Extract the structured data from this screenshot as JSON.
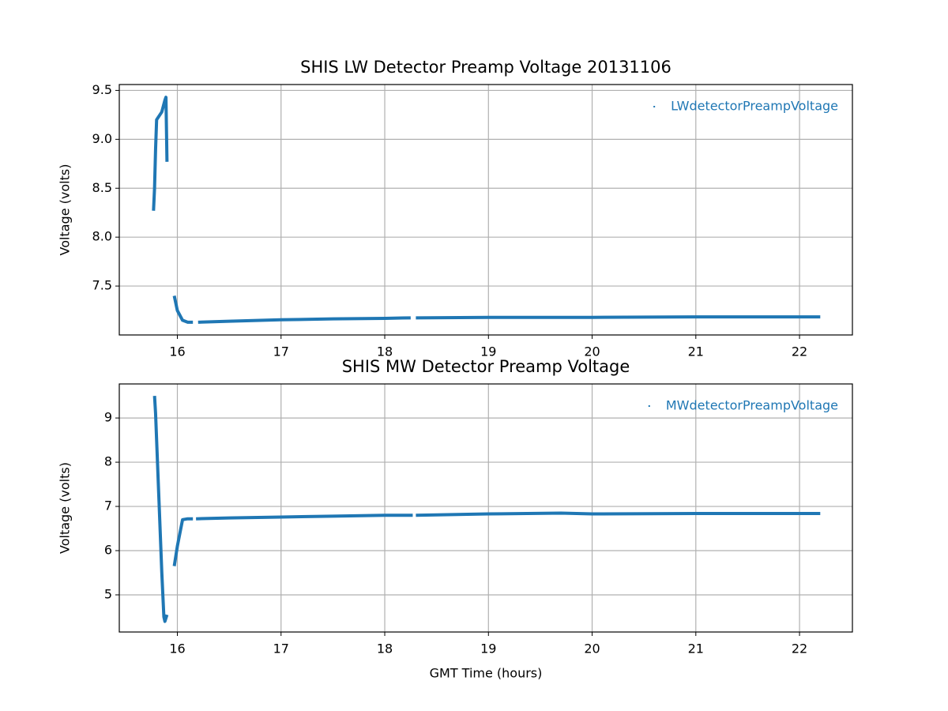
{
  "chart_data": [
    {
      "type": "line",
      "title": "SHIS LW Detector Preamp Voltage 20131106",
      "y_label": "Voltage (volts)",
      "series": [
        {
          "name": "LWdetectorPreampVoltage",
          "color": "#1f77b4",
          "x": [
            15.77,
            15.78,
            15.79,
            15.8,
            15.85,
            15.88,
            15.89,
            15.9,
            15.93,
            15.97,
            16.0,
            16.05,
            16.1,
            16.15,
            16.17,
            16.2,
            16.5,
            17,
            17.5,
            18,
            18.25,
            18.27,
            18.3,
            19,
            20,
            21,
            22.2
          ],
          "values": [
            8.27,
            8.5,
            8.9,
            9.2,
            9.28,
            9.4,
            9.43,
            8.77,
            null,
            7.4,
            7.25,
            7.15,
            7.13,
            7.13,
            null,
            7.13,
            7.14,
            7.155,
            7.165,
            7.17,
            7.175,
            null,
            7.175,
            7.18,
            7.18,
            7.185,
            7.185
          ]
        }
      ],
      "xlim": [
        15.44,
        22.51
      ],
      "xticks": [
        16,
        17,
        18,
        19,
        20,
        21,
        22
      ],
      "ylim": [
        7.0,
        9.56
      ],
      "yticks": [
        7.5,
        {
          "value": 8.0,
          "label": "8.0"
        },
        8.5,
        {
          "value": 9.0,
          "label": "9.0"
        },
        9.5
      ],
      "grid": true,
      "legend": "upper right"
    },
    {
      "type": "line",
      "title": "SHIS MW Detector Preamp Voltage",
      "x_label": "GMT Time (hours)",
      "y_label": "Voltage (volts)",
      "series": [
        {
          "name": "MWdetectorPreampVoltage",
          "color": "#1f77b4",
          "x": [
            15.78,
            15.79,
            15.8,
            15.82,
            15.85,
            15.87,
            15.88,
            15.9,
            15.93,
            15.97,
            16.0,
            16.05,
            16.1,
            16.15,
            16.17,
            16.18,
            16.5,
            17,
            17.5,
            18,
            18.27,
            18.28,
            18.3,
            19,
            19.7,
            20,
            21,
            22.2
          ],
          "values": [
            9.5,
            9.1,
            8.5,
            7.3,
            5.5,
            4.5,
            4.4,
            4.55,
            null,
            5.65,
            6.1,
            6.7,
            6.72,
            6.72,
            null,
            6.72,
            6.74,
            6.76,
            6.78,
            6.8,
            6.8,
            null,
            6.8,
            6.83,
            6.85,
            6.83,
            6.84,
            6.84
          ]
        }
      ],
      "xlim": [
        15.44,
        22.51
      ],
      "xticks": [
        16,
        17,
        18,
        19,
        20,
        21,
        22
      ],
      "ylim": [
        4.16,
        9.77
      ],
      "yticks": [
        5,
        6,
        7,
        8,
        9
      ],
      "grid": true,
      "legend": "upper right"
    }
  ]
}
